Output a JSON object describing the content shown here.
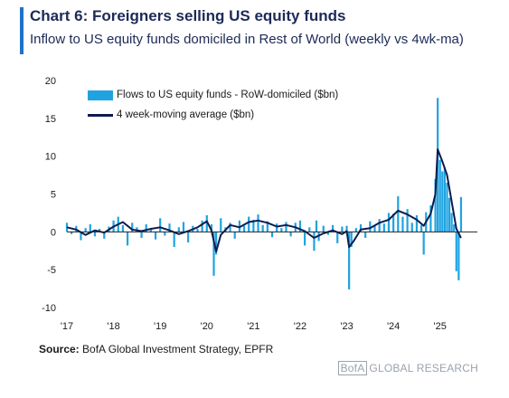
{
  "header": {
    "title": "Chart 6: Foreigners selling US equity funds",
    "subtitle": "Inflow to US equity funds domiciled in Rest of World (weekly vs 4wk-ma)"
  },
  "footer": {
    "source_label": "Source:",
    "source_text": "BofA Global Investment Strategy, EPFR",
    "brand_logo": "BofA",
    "brand_text": "GLOBAL RESEARCH"
  },
  "colors": {
    "accent": "#1f72c8",
    "bars": "#1fa3e0",
    "ma_line": "#0d1b4f",
    "title": "#1c2a57"
  },
  "chart_data": {
    "type": "bar",
    "legend_position": "top-left",
    "grid": false,
    "ylim": [
      -10,
      20
    ],
    "yticks": [
      20,
      15,
      10,
      5,
      0,
      -5,
      -10
    ],
    "xlim": [
      2017.0,
      2025.8
    ],
    "xticks": [
      {
        "value": 2017,
        "label": "'17"
      },
      {
        "value": 2018,
        "label": "'18"
      },
      {
        "value": 2019,
        "label": "'19"
      },
      {
        "value": 2020,
        "label": "'20"
      },
      {
        "value": 2021,
        "label": "'21"
      },
      {
        "value": 2022,
        "label": "'22"
      },
      {
        "value": 2023,
        "label": "'23"
      },
      {
        "value": 2024,
        "label": "'24"
      },
      {
        "value": 2025,
        "label": "'25"
      }
    ],
    "series": [
      {
        "name": "Flows to US equity funds - RoW-domiciled ($bn)",
        "kind": "bar",
        "points": [
          [
            2017.0,
            1.2
          ],
          [
            2017.1,
            -0.3
          ],
          [
            2017.2,
            0.8
          ],
          [
            2017.3,
            -1.1
          ],
          [
            2017.4,
            0.5
          ],
          [
            2017.5,
            1.0
          ],
          [
            2017.6,
            -0.6
          ],
          [
            2017.7,
            0.4
          ],
          [
            2017.8,
            -0.9
          ],
          [
            2017.9,
            0.7
          ],
          [
            2018.0,
            1.5
          ],
          [
            2018.1,
            2.0
          ],
          [
            2018.2,
            0.9
          ],
          [
            2018.3,
            -1.8
          ],
          [
            2018.4,
            1.2
          ],
          [
            2018.5,
            0.6
          ],
          [
            2018.6,
            -0.8
          ],
          [
            2018.7,
            1.0
          ],
          [
            2018.8,
            0.3
          ],
          [
            2018.9,
            -1.0
          ],
          [
            2019.0,
            1.8
          ],
          [
            2019.1,
            -0.5
          ],
          [
            2019.2,
            1.1
          ],
          [
            2019.3,
            -2.0
          ],
          [
            2019.4,
            0.6
          ],
          [
            2019.5,
            1.3
          ],
          [
            2019.6,
            -1.4
          ],
          [
            2019.7,
            0.8
          ],
          [
            2019.8,
            0.4
          ],
          [
            2019.9,
            1.5
          ],
          [
            2020.0,
            2.2
          ],
          [
            2020.1,
            1.0
          ],
          [
            2020.15,
            -5.8
          ],
          [
            2020.2,
            -3.0
          ],
          [
            2020.3,
            1.8
          ],
          [
            2020.4,
            0.6
          ],
          [
            2020.5,
            1.2
          ],
          [
            2020.6,
            -0.9
          ],
          [
            2020.7,
            1.5
          ],
          [
            2020.8,
            0.8
          ],
          [
            2020.9,
            2.0
          ],
          [
            2021.0,
            1.6
          ],
          [
            2021.1,
            2.3
          ],
          [
            2021.2,
            0.9
          ],
          [
            2021.3,
            1.4
          ],
          [
            2021.4,
            -0.7
          ],
          [
            2021.5,
            1.1
          ],
          [
            2021.6,
            0.5
          ],
          [
            2021.7,
            1.3
          ],
          [
            2021.8,
            -0.6
          ],
          [
            2021.9,
            1.2
          ],
          [
            2022.0,
            1.5
          ],
          [
            2022.1,
            -1.8
          ],
          [
            2022.2,
            0.6
          ],
          [
            2022.3,
            -2.5
          ],
          [
            2022.35,
            1.5
          ],
          [
            2022.4,
            -1.2
          ],
          [
            2022.5,
            0.8
          ],
          [
            2022.6,
            -0.4
          ],
          [
            2022.7,
            0.9
          ],
          [
            2022.8,
            -1.5
          ],
          [
            2022.9,
            0.7
          ],
          [
            2023.0,
            0.8
          ],
          [
            2023.05,
            -7.6
          ],
          [
            2023.1,
            -2.0
          ],
          [
            2023.2,
            0.5
          ],
          [
            2023.3,
            1.0
          ],
          [
            2023.4,
            -0.8
          ],
          [
            2023.5,
            1.4
          ],
          [
            2023.6,
            0.9
          ],
          [
            2023.7,
            1.7
          ],
          [
            2023.8,
            1.1
          ],
          [
            2023.9,
            2.5
          ],
          [
            2024.0,
            2.4
          ],
          [
            2024.1,
            4.7
          ],
          [
            2024.2,
            2.0
          ],
          [
            2024.3,
            3.0
          ],
          [
            2024.4,
            1.2
          ],
          [
            2024.5,
            2.2
          ],
          [
            2024.6,
            0.9
          ],
          [
            2024.65,
            -3.0
          ],
          [
            2024.7,
            2.6
          ],
          [
            2024.8,
            3.5
          ],
          [
            2024.9,
            7.0
          ],
          [
            2024.95,
            17.7
          ],
          [
            2025.0,
            9.5
          ],
          [
            2025.05,
            8.0
          ],
          [
            2025.1,
            8.5
          ],
          [
            2025.15,
            6.5
          ],
          [
            2025.2,
            4.5
          ],
          [
            2025.25,
            2.5
          ],
          [
            2025.3,
            1.0
          ],
          [
            2025.35,
            -5.2
          ],
          [
            2025.4,
            -6.4
          ],
          [
            2025.45,
            4.6
          ]
        ]
      },
      {
        "name": "4 week-moving average ($bn)",
        "kind": "line",
        "points": [
          [
            2017.0,
            0.6
          ],
          [
            2017.2,
            0.3
          ],
          [
            2017.4,
            -0.4
          ],
          [
            2017.6,
            0.2
          ],
          [
            2017.8,
            -0.1
          ],
          [
            2018.0,
            0.7
          ],
          [
            2018.2,
            1.3
          ],
          [
            2018.4,
            0.3
          ],
          [
            2018.6,
            0.1
          ],
          [
            2018.8,
            0.4
          ],
          [
            2019.0,
            0.6
          ],
          [
            2019.2,
            0.2
          ],
          [
            2019.4,
            -0.3
          ],
          [
            2019.6,
            0.1
          ],
          [
            2019.8,
            0.6
          ],
          [
            2020.0,
            1.4
          ],
          [
            2020.1,
            0.2
          ],
          [
            2020.2,
            -2.6
          ],
          [
            2020.3,
            -0.4
          ],
          [
            2020.5,
            0.9
          ],
          [
            2020.7,
            0.6
          ],
          [
            2020.9,
            1.3
          ],
          [
            2021.1,
            1.5
          ],
          [
            2021.3,
            1.2
          ],
          [
            2021.5,
            0.7
          ],
          [
            2021.7,
            0.9
          ],
          [
            2021.9,
            0.6
          ],
          [
            2022.1,
            0.1
          ],
          [
            2022.3,
            -0.8
          ],
          [
            2022.5,
            -0.2
          ],
          [
            2022.7,
            0.2
          ],
          [
            2022.9,
            -0.3
          ],
          [
            2023.0,
            0.1
          ],
          [
            2023.05,
            -2.0
          ],
          [
            2023.15,
            -1.2
          ],
          [
            2023.3,
            0.3
          ],
          [
            2023.5,
            0.5
          ],
          [
            2023.7,
            1.2
          ],
          [
            2023.9,
            1.6
          ],
          [
            2024.1,
            2.8
          ],
          [
            2024.3,
            2.3
          ],
          [
            2024.5,
            1.6
          ],
          [
            2024.65,
            0.8
          ],
          [
            2024.8,
            2.4
          ],
          [
            2024.9,
            5.0
          ],
          [
            2024.95,
            10.9
          ],
          [
            2025.05,
            9.3
          ],
          [
            2025.15,
            7.5
          ],
          [
            2025.25,
            4.0
          ],
          [
            2025.35,
            0.4
          ],
          [
            2025.45,
            -0.8
          ]
        ]
      }
    ]
  }
}
